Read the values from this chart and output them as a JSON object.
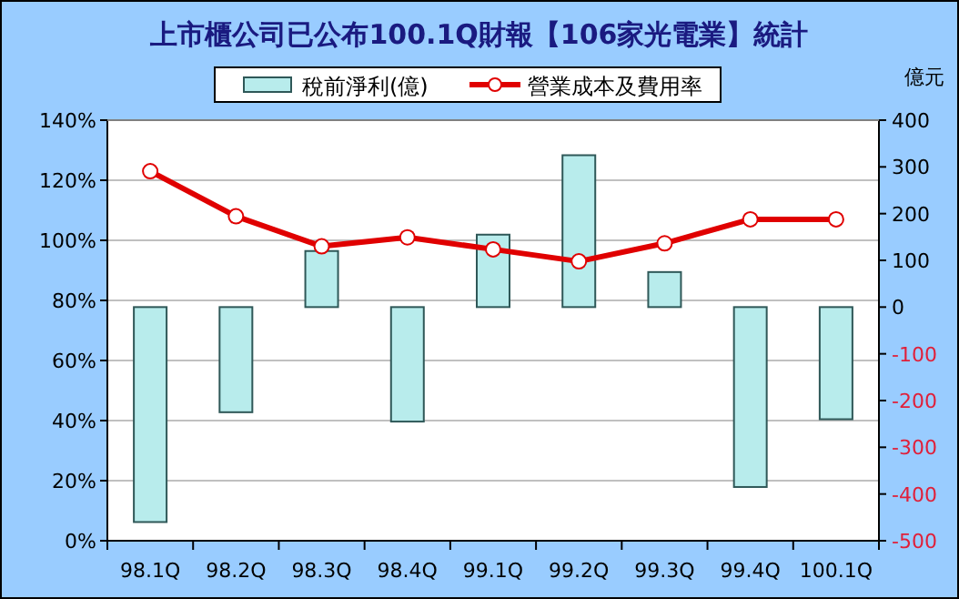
{
  "chart_data": {
    "type": "bar",
    "title": "上市櫃公司已公布100.1Q財報【106家光電業】統計",
    "y2label": "億元",
    "categories": [
      "98.1Q",
      "98.2Q",
      "98.3Q",
      "98.4Q",
      "99.1Q",
      "99.2Q",
      "99.3Q",
      "99.4Q",
      "100.1Q"
    ],
    "series": [
      {
        "name": "稅前淨利(億)",
        "axis": "y2",
        "color": "#b8ecec",
        "values": [
          -460,
          -225,
          120,
          -245,
          155,
          325,
          75,
          -385,
          -240
        ]
      },
      {
        "name": "營業成本及費用率",
        "type": "line",
        "axis": "y",
        "color": "#e00000",
        "marker": "circle",
        "values": [
          123,
          108,
          98,
          101,
          97,
          93,
          99,
          107,
          107
        ]
      }
    ],
    "ylim": [
      0,
      140
    ],
    "yticks": [
      {
        "value": 0,
        "label": "0%"
      },
      {
        "value": 20,
        "label": "20%"
      },
      {
        "value": 40,
        "label": "40%"
      },
      {
        "value": 60,
        "label": "60%"
      },
      {
        "value": 80,
        "label": "80%"
      },
      {
        "value": 100,
        "label": "100%"
      },
      {
        "value": 120,
        "label": "120%"
      },
      {
        "value": 140,
        "label": "140%"
      }
    ],
    "y2lim": [
      -500,
      400
    ],
    "y2ticks": [
      -500,
      -400,
      -300,
      -200,
      -100,
      0,
      100,
      200,
      300,
      400
    ],
    "grid": "y",
    "legend": "top"
  }
}
